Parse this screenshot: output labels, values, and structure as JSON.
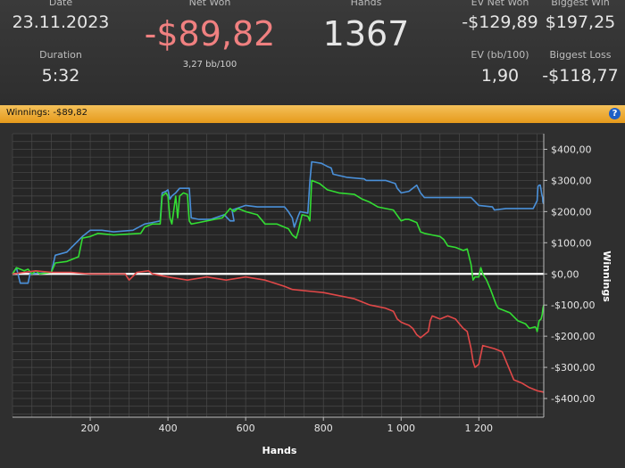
{
  "stats": {
    "date": {
      "label": "Date",
      "value": "23.11.2023"
    },
    "duration": {
      "label": "Duration",
      "value": "5:32"
    },
    "net_won": {
      "label": "Net Won",
      "value": "-$89,82",
      "sub": "3,27 bb/100"
    },
    "hands": {
      "label": "Hands",
      "value": "1367"
    },
    "ev_net_won": {
      "label": "EV Net Won",
      "value": "-$129,89"
    },
    "ev_bb": {
      "label": "EV (bb/100)",
      "value": "1,90"
    },
    "biggest_win": {
      "label": "Biggest Win",
      "value": "$197,25"
    },
    "biggest_loss": {
      "label": "Biggest Loss",
      "value": "-$118,77"
    }
  },
  "banner": {
    "text": "Winnings:  -$89,82",
    "help": "?"
  },
  "colors": {
    "green": "#33dd33",
    "blue": "#4a90d9",
    "red": "#e04848",
    "zero_line": "#ffffff",
    "grid": "#4a4a4a"
  },
  "chart_data": {
    "type": "line",
    "xlabel": "Hands",
    "ylabel": "Winnings",
    "xlim": [
      0,
      1367
    ],
    "ylim": [
      -460,
      450
    ],
    "x_ticks": [
      200,
      400,
      600,
      800,
      1000,
      1200
    ],
    "x_tick_labels": [
      "200",
      "400",
      "600",
      "800",
      "1 000",
      "1 200"
    ],
    "y_ticks": [
      400,
      300,
      200,
      100,
      0,
      -100,
      -200,
      -300,
      -400
    ],
    "y_tick_labels": [
      "$400,00",
      "$300,00",
      "$200,00",
      "$100,00",
      "$0,00",
      "-$100,00",
      "-$200,00",
      "-$300,00",
      "-$400,00"
    ],
    "grid": true,
    "series": [
      {
        "color": "blue",
        "points": [
          [
            0,
            0
          ],
          [
            10,
            20
          ],
          [
            20,
            -30
          ],
          [
            40,
            -30
          ],
          [
            45,
            0
          ],
          [
            100,
            5
          ],
          [
            110,
            60
          ],
          [
            140,
            70
          ],
          [
            180,
            120
          ],
          [
            200,
            140
          ],
          [
            230,
            140
          ],
          [
            260,
            135
          ],
          [
            310,
            140
          ],
          [
            340,
            160
          ],
          [
            360,
            165
          ],
          [
            380,
            170
          ],
          [
            385,
            260
          ],
          [
            395,
            265
          ],
          [
            400,
            270
          ],
          [
            405,
            240
          ],
          [
            410,
            250
          ],
          [
            420,
            260
          ],
          [
            430,
            275
          ],
          [
            440,
            275
          ],
          [
            455,
            275
          ],
          [
            460,
            180
          ],
          [
            480,
            175
          ],
          [
            510,
            175
          ],
          [
            545,
            190
          ],
          [
            560,
            170
          ],
          [
            570,
            170
          ],
          [
            565,
            205
          ],
          [
            600,
            220
          ],
          [
            630,
            215
          ],
          [
            700,
            215
          ],
          [
            710,
            200
          ],
          [
            720,
            180
          ],
          [
            725,
            150
          ],
          [
            735,
            185
          ],
          [
            740,
            200
          ],
          [
            760,
            195
          ],
          [
            765,
            295
          ],
          [
            770,
            360
          ],
          [
            795,
            355
          ],
          [
            810,
            345
          ],
          [
            820,
            340
          ],
          [
            825,
            320
          ],
          [
            860,
            310
          ],
          [
            905,
            305
          ],
          [
            910,
            300
          ],
          [
            960,
            300
          ],
          [
            985,
            290
          ],
          [
            990,
            275
          ],
          [
            1000,
            260
          ],
          [
            1020,
            265
          ],
          [
            1040,
            285
          ],
          [
            1050,
            260
          ],
          [
            1060,
            245
          ],
          [
            1180,
            245
          ],
          [
            1200,
            220
          ],
          [
            1235,
            215
          ],
          [
            1240,
            205
          ],
          [
            1270,
            210
          ],
          [
            1290,
            210
          ],
          [
            1340,
            210
          ],
          [
            1348,
            230
          ],
          [
            1350,
            235
          ],
          [
            1352,
            280
          ],
          [
            1355,
            285
          ],
          [
            1358,
            285
          ],
          [
            1360,
            270
          ],
          [
            1362,
            255
          ],
          [
            1364,
            245
          ],
          [
            1365,
            230
          ],
          [
            1367,
            225
          ]
        ]
      },
      {
        "color": "green",
        "points": [
          [
            0,
            0
          ],
          [
            10,
            20
          ],
          [
            30,
            10
          ],
          [
            40,
            15
          ],
          [
            50,
            0
          ],
          [
            60,
            10
          ],
          [
            70,
            0
          ],
          [
            100,
            5
          ],
          [
            110,
            35
          ],
          [
            140,
            40
          ],
          [
            170,
            55
          ],
          [
            180,
            115
          ],
          [
            200,
            120
          ],
          [
            220,
            130
          ],
          [
            260,
            125
          ],
          [
            330,
            130
          ],
          [
            340,
            150
          ],
          [
            360,
            160
          ],
          [
            380,
            160
          ],
          [
            385,
            250
          ],
          [
            395,
            260
          ],
          [
            400,
            250
          ],
          [
            405,
            180
          ],
          [
            410,
            160
          ],
          [
            420,
            250
          ],
          [
            425,
            180
          ],
          [
            430,
            250
          ],
          [
            440,
            260
          ],
          [
            450,
            255
          ],
          [
            455,
            170
          ],
          [
            460,
            160
          ],
          [
            480,
            165
          ],
          [
            500,
            170
          ],
          [
            520,
            175
          ],
          [
            540,
            180
          ],
          [
            560,
            210
          ],
          [
            570,
            200
          ],
          [
            580,
            210
          ],
          [
            600,
            200
          ],
          [
            630,
            190
          ],
          [
            650,
            160
          ],
          [
            680,
            160
          ],
          [
            710,
            145
          ],
          [
            720,
            125
          ],
          [
            730,
            115
          ],
          [
            735,
            135
          ],
          [
            745,
            190
          ],
          [
            760,
            185
          ],
          [
            765,
            170
          ],
          [
            770,
            300
          ],
          [
            790,
            290
          ],
          [
            810,
            270
          ],
          [
            840,
            260
          ],
          [
            880,
            255
          ],
          [
            900,
            240
          ],
          [
            920,
            230
          ],
          [
            940,
            215
          ],
          [
            960,
            210
          ],
          [
            980,
            205
          ],
          [
            1000,
            170
          ],
          [
            1010,
            175
          ],
          [
            1020,
            175
          ],
          [
            1040,
            165
          ],
          [
            1050,
            135
          ],
          [
            1060,
            130
          ],
          [
            1080,
            125
          ],
          [
            1100,
            120
          ],
          [
            1110,
            110
          ],
          [
            1120,
            90
          ],
          [
            1140,
            85
          ],
          [
            1160,
            75
          ],
          [
            1170,
            80
          ],
          [
            1180,
            30
          ],
          [
            1185,
            -20
          ],
          [
            1190,
            -10
          ],
          [
            1200,
            -10
          ],
          [
            1205,
            20
          ],
          [
            1210,
            0
          ],
          [
            1220,
            -20
          ],
          [
            1230,
            -50
          ],
          [
            1245,
            -100
          ],
          [
            1250,
            -110
          ],
          [
            1280,
            -125
          ],
          [
            1300,
            -150
          ],
          [
            1320,
            -160
          ],
          [
            1330,
            -175
          ],
          [
            1345,
            -170
          ],
          [
            1348,
            -175
          ],
          [
            1350,
            -185
          ],
          [
            1355,
            -150
          ],
          [
            1360,
            -145
          ],
          [
            1363,
            -130
          ],
          [
            1365,
            -110
          ],
          [
            1367,
            -100
          ]
        ]
      },
      {
        "color": "red",
        "points": [
          [
            0,
            0
          ],
          [
            30,
            5
          ],
          [
            60,
            10
          ],
          [
            100,
            5
          ],
          [
            150,
            5
          ],
          [
            200,
            0
          ],
          [
            250,
            0
          ],
          [
            290,
            0
          ],
          [
            300,
            -20
          ],
          [
            320,
            5
          ],
          [
            350,
            10
          ],
          [
            360,
            0
          ],
          [
            400,
            -10
          ],
          [
            450,
            -20
          ],
          [
            500,
            -10
          ],
          [
            550,
            -20
          ],
          [
            600,
            -10
          ],
          [
            650,
            -20
          ],
          [
            700,
            -40
          ],
          [
            720,
            -50
          ],
          [
            760,
            -55
          ],
          [
            800,
            -60
          ],
          [
            840,
            -70
          ],
          [
            880,
            -80
          ],
          [
            920,
            -100
          ],
          [
            960,
            -110
          ],
          [
            980,
            -120
          ],
          [
            990,
            -145
          ],
          [
            1000,
            -155
          ],
          [
            1010,
            -160
          ],
          [
            1020,
            -165
          ],
          [
            1030,
            -175
          ],
          [
            1040,
            -195
          ],
          [
            1050,
            -205
          ],
          [
            1060,
            -195
          ],
          [
            1070,
            -185
          ],
          [
            1075,
            -150
          ],
          [
            1080,
            -135
          ],
          [
            1100,
            -145
          ],
          [
            1120,
            -135
          ],
          [
            1140,
            -145
          ],
          [
            1150,
            -160
          ],
          [
            1160,
            -175
          ],
          [
            1170,
            -185
          ],
          [
            1180,
            -240
          ],
          [
            1185,
            -280
          ],
          [
            1190,
            -300
          ],
          [
            1200,
            -290
          ],
          [
            1210,
            -230
          ],
          [
            1240,
            -240
          ],
          [
            1260,
            -250
          ],
          [
            1280,
            -310
          ],
          [
            1290,
            -340
          ],
          [
            1310,
            -350
          ],
          [
            1330,
            -365
          ],
          [
            1350,
            -375
          ],
          [
            1367,
            -380
          ]
        ]
      }
    ]
  }
}
